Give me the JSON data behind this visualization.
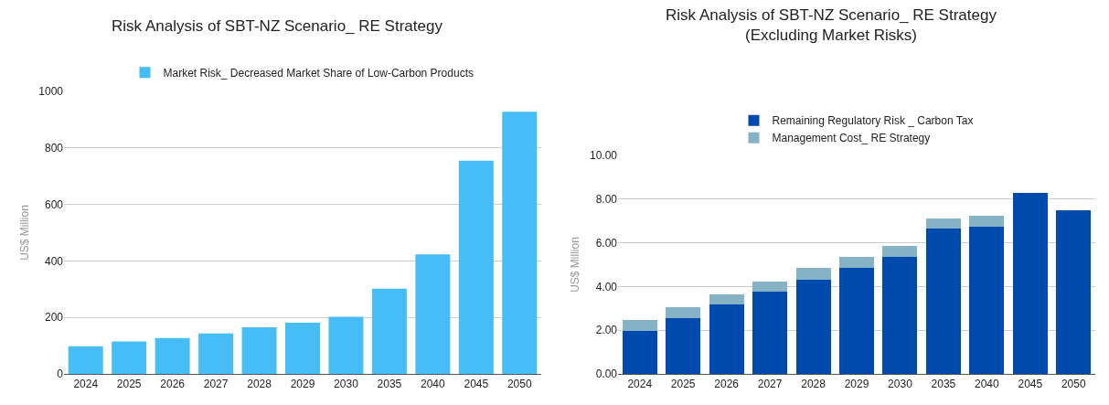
{
  "chart_data": [
    {
      "type": "bar",
      "title": "Risk Analysis of SBT-NZ Scenario_ RE Strategy",
      "ylabel": "US$ Million",
      "categories": [
        "2024",
        "2025",
        "2026",
        "2027",
        "2028",
        "2029",
        "2030",
        "2035",
        "2040",
        "2045",
        "2050"
      ],
      "series": [
        {
          "name": "Market Risk_ Decreased Market Share of Low-Carbon Products",
          "color": "#46bdf7",
          "values": [
            98,
            115,
            127,
            143,
            165,
            181,
            202,
            302,
            423,
            755,
            928
          ]
        }
      ],
      "ylim": [
        0,
        1000
      ],
      "yticks": [
        0,
        200,
        400,
        600,
        800,
        1000
      ],
      "grid": "y",
      "legend": "top"
    },
    {
      "type": "bar",
      "title": "Risk Analysis of SBT-NZ Scenario_ RE Strategy\n(Excluding Market Risks)",
      "ylabel": "US$ Million",
      "categories": [
        "2024",
        "2025",
        "2026",
        "2027",
        "2028",
        "2029",
        "2030",
        "2035",
        "2040",
        "2045",
        "2050"
      ],
      "stacked": true,
      "series": [
        {
          "name": "Remaining Regulatory Risk _ Carbon Tax",
          "color": "#004aad",
          "values": [
            1.97,
            2.57,
            3.19,
            3.78,
            4.33,
            4.84,
            5.35,
            6.66,
            6.74,
            8.29,
            7.5
          ]
        },
        {
          "name": "Management Cost_ RE Strategy",
          "color": "#85b3c5",
          "values": [
            0.5,
            0.49,
            0.46,
            0.46,
            0.51,
            0.51,
            0.51,
            0.46,
            0.5,
            0,
            0
          ]
        }
      ],
      "ylim": [
        0,
        10
      ],
      "yticks": [
        {
          "value": 0,
          "label": "0.00"
        },
        {
          "value": 2,
          "label": "2.00"
        },
        {
          "value": 4,
          "label": "4.00"
        },
        {
          "value": 6,
          "label": "6.00"
        },
        {
          "value": 8,
          "label": "8.00"
        },
        {
          "value": 10,
          "label": "10.00"
        }
      ],
      "grid": "y",
      "legend": "top"
    }
  ]
}
